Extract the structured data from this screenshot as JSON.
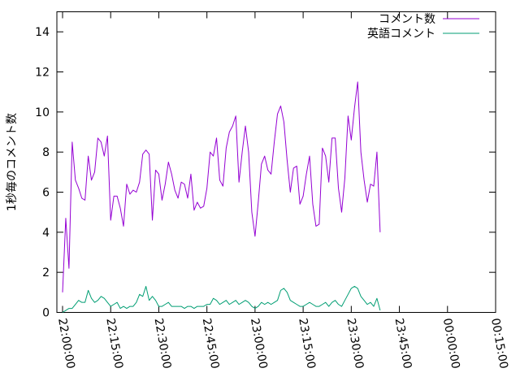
{
  "chart_data": {
    "type": "line",
    "ylabel": "1秒毎のコメント数",
    "xlabel": "",
    "title": "",
    "ylim": [
      0,
      15
    ],
    "y_ticks": [
      0,
      2,
      4,
      6,
      8,
      10,
      12,
      14
    ],
    "x_ticks": [
      "22:00:00",
      "22:15:00",
      "22:30:00",
      "22:45:00",
      "23:00:00",
      "23:15:00",
      "23:30:00",
      "23:45:00",
      "00:00:00",
      "00:15:00"
    ],
    "legend_position": "top-right",
    "x_start": "22:00:00",
    "x_step_minutes": 1,
    "series": [
      {
        "name": "コメント数",
        "color": "#9400d3",
        "values": [
          1.0,
          4.7,
          2.2,
          8.5,
          6.6,
          6.2,
          5.7,
          5.6,
          7.8,
          6.6,
          7.0,
          8.7,
          8.5,
          7.8,
          8.8,
          4.6,
          5.8,
          5.8,
          5.2,
          4.3,
          6.4,
          5.9,
          6.1,
          6.0,
          6.5,
          7.9,
          8.1,
          7.9,
          4.6,
          7.1,
          6.9,
          5.6,
          6.4,
          7.5,
          6.9,
          6.1,
          5.7,
          6.5,
          6.4,
          5.7,
          6.9,
          5.1,
          5.5,
          5.2,
          5.3,
          6.2,
          8.0,
          7.8,
          8.7,
          6.6,
          6.3,
          8.2,
          9.0,
          9.3,
          9.8,
          6.5,
          8.0,
          9.3,
          8.0,
          5.0,
          3.8,
          5.5,
          7.4,
          7.8,
          7.1,
          6.9,
          8.5,
          9.9,
          10.3,
          9.5,
          7.6,
          6.0,
          7.2,
          7.3,
          5.4,
          5.8,
          6.9,
          7.8,
          5.4,
          4.3,
          4.4,
          8.2,
          7.8,
          6.5,
          8.7,
          8.7,
          6.2,
          5.0,
          6.7,
          9.8,
          8.6,
          10.2,
          11.5,
          8.0,
          6.6,
          5.5,
          6.4,
          6.3,
          8.0,
          4.0
        ]
      },
      {
        "name": "英語コメント",
        "color": "#009e73",
        "values": [
          0.0,
          0.1,
          0.2,
          0.2,
          0.4,
          0.6,
          0.5,
          0.5,
          1.1,
          0.7,
          0.5,
          0.6,
          0.8,
          0.7,
          0.5,
          0.3,
          0.4,
          0.5,
          0.2,
          0.3,
          0.2,
          0.3,
          0.3,
          0.5,
          0.9,
          0.8,
          1.3,
          0.6,
          0.8,
          0.6,
          0.3,
          0.3,
          0.4,
          0.5,
          0.3,
          0.3,
          0.3,
          0.3,
          0.2,
          0.3,
          0.3,
          0.2,
          0.3,
          0.3,
          0.3,
          0.4,
          0.4,
          0.7,
          0.6,
          0.4,
          0.5,
          0.6,
          0.4,
          0.5,
          0.6,
          0.4,
          0.5,
          0.6,
          0.5,
          0.3,
          0.2,
          0.3,
          0.5,
          0.4,
          0.5,
          0.4,
          0.5,
          0.6,
          1.1,
          1.2,
          1.0,
          0.6,
          0.5,
          0.4,
          0.3,
          0.3,
          0.4,
          0.5,
          0.4,
          0.3,
          0.3,
          0.4,
          0.5,
          0.3,
          0.5,
          0.6,
          0.4,
          0.3,
          0.6,
          0.9,
          1.2,
          1.3,
          1.2,
          0.8,
          0.6,
          0.4,
          0.5,
          0.3,
          0.7,
          0.1
        ]
      }
    ]
  }
}
